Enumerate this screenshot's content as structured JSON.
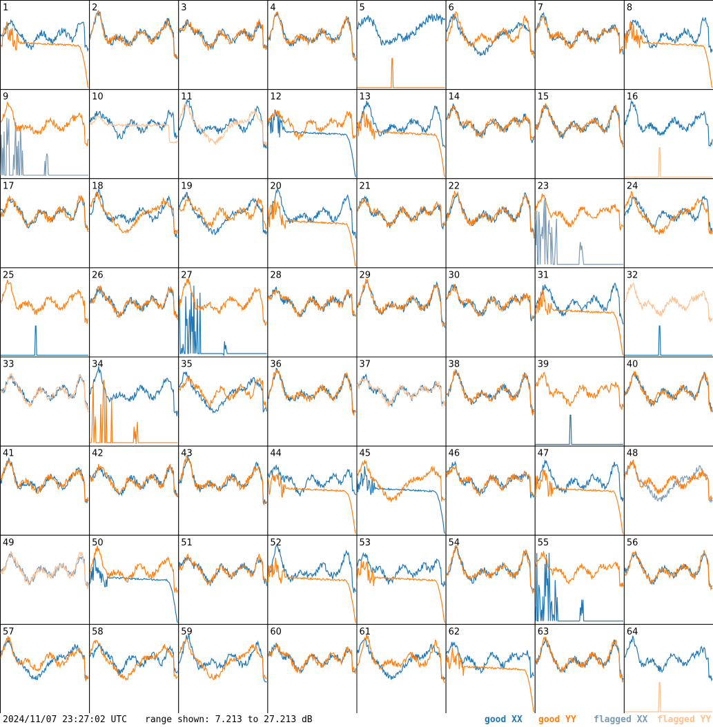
{
  "footer": {
    "timestamp": "2024/11/07 23:27:02 UTC",
    "range_text": "range shown: 7.213 to 27.213 dB"
  },
  "legend": [
    {
      "label": "good XX",
      "color": "#1f77b4"
    },
    {
      "label": "good YY",
      "color": "#ff7f0e"
    },
    {
      "label": "flagged XX",
      "color": "#7a9ab5"
    },
    {
      "label": "flagged YY",
      "color": "#ffc090"
    }
  ],
  "chart_data": {
    "type": "line",
    "layout": "8x8 small multiples",
    "ylim": [
      7.213,
      27.213
    ],
    "yunit": "dB",
    "panels": [
      {
        "id": "1",
        "xx": {
          "s": "good",
          "p": "A"
        },
        "yy": {
          "s": "good",
          "p": "K"
        }
      },
      {
        "id": "2",
        "xx": {
          "s": "good",
          "p": "A"
        },
        "yy": {
          "s": "good",
          "p": "A"
        }
      },
      {
        "id": "3",
        "xx": {
          "s": "good",
          "p": "A"
        },
        "yy": {
          "s": "good",
          "p": "A"
        }
      },
      {
        "id": "4",
        "xx": {
          "s": "good",
          "p": "A"
        },
        "yy": {
          "s": "good",
          "p": "A"
        }
      },
      {
        "id": "5",
        "xx": {
          "s": "good",
          "p": "W"
        },
        "yy": {
          "s": "good",
          "p": "Z"
        }
      },
      {
        "id": "6",
        "xx": {
          "s": "good",
          "p": "D"
        },
        "yy": {
          "s": "good",
          "p": "A"
        }
      },
      {
        "id": "7",
        "xx": {
          "s": "good",
          "p": "A"
        },
        "yy": {
          "s": "good",
          "p": "A"
        }
      },
      {
        "id": "8",
        "xx": {
          "s": "good",
          "p": "A"
        },
        "yy": {
          "s": "good",
          "p": "K"
        }
      },
      {
        "id": "9",
        "xx": {
          "s": "flagged",
          "p": "S"
        },
        "yy": {
          "s": "good",
          "p": "A"
        }
      },
      {
        "id": "10",
        "xx": {
          "s": "good",
          "p": "A"
        },
        "yy": {
          "s": "flagged",
          "p": "L"
        }
      },
      {
        "id": "11",
        "xx": {
          "s": "good",
          "p": "A"
        },
        "yy": {
          "s": "flagged",
          "p": "D"
        }
      },
      {
        "id": "12",
        "xx": {
          "s": "good",
          "p": "K"
        },
        "yy": {
          "s": "good",
          "p": "A"
        }
      },
      {
        "id": "13",
        "xx": {
          "s": "good",
          "p": "A"
        },
        "yy": {
          "s": "good",
          "p": "K"
        }
      },
      {
        "id": "14",
        "xx": {
          "s": "good",
          "p": "A"
        },
        "yy": {
          "s": "good",
          "p": "A"
        }
      },
      {
        "id": "15",
        "xx": {
          "s": "good",
          "p": "A"
        },
        "yy": {
          "s": "good",
          "p": "A"
        }
      },
      {
        "id": "16",
        "xx": {
          "s": "good",
          "p": "A"
        },
        "yy": {
          "s": "flagged",
          "p": "Z"
        }
      },
      {
        "id": "17",
        "xx": {
          "s": "good",
          "p": "A"
        },
        "yy": {
          "s": "good",
          "p": "A"
        }
      },
      {
        "id": "18",
        "xx": {
          "s": "good",
          "p": "A"
        },
        "yy": {
          "s": "good",
          "p": "D"
        }
      },
      {
        "id": "19",
        "xx": {
          "s": "good",
          "p": "D"
        },
        "yy": {
          "s": "good",
          "p": "A"
        }
      },
      {
        "id": "20",
        "xx": {
          "s": "good",
          "p": "A"
        },
        "yy": {
          "s": "good",
          "p": "K"
        }
      },
      {
        "id": "21",
        "xx": {
          "s": "good",
          "p": "A"
        },
        "yy": {
          "s": "good",
          "p": "A"
        }
      },
      {
        "id": "22",
        "xx": {
          "s": "good",
          "p": "A"
        },
        "yy": {
          "s": "good",
          "p": "A"
        }
      },
      {
        "id": "23",
        "xx": {
          "s": "flagged",
          "p": "S"
        },
        "yy": {
          "s": "good",
          "p": "A"
        }
      },
      {
        "id": "24",
        "xx": {
          "s": "good",
          "p": "A"
        },
        "yy": {
          "s": "good",
          "p": "D"
        }
      },
      {
        "id": "25",
        "xx": {
          "s": "good",
          "p": "Z"
        },
        "yy": {
          "s": "good",
          "p": "A"
        }
      },
      {
        "id": "26",
        "xx": {
          "s": "good",
          "p": "A"
        },
        "yy": {
          "s": "good",
          "p": "A"
        }
      },
      {
        "id": "27",
        "xx": {
          "s": "good",
          "p": "S"
        },
        "yy": {
          "s": "good",
          "p": "A"
        }
      },
      {
        "id": "28",
        "xx": {
          "s": "good",
          "p": "A"
        },
        "yy": {
          "s": "good",
          "p": "A"
        }
      },
      {
        "id": "29",
        "xx": {
          "s": "good",
          "p": "A"
        },
        "yy": {
          "s": "good",
          "p": "A"
        }
      },
      {
        "id": "30",
        "xx": {
          "s": "good",
          "p": "A"
        },
        "yy": {
          "s": "good",
          "p": "A"
        }
      },
      {
        "id": "31",
        "xx": {
          "s": "good",
          "p": "A"
        },
        "yy": {
          "s": "good",
          "p": "K"
        }
      },
      {
        "id": "32",
        "xx": {
          "s": "good",
          "p": "Z"
        },
        "yy": {
          "s": "flagged",
          "p": "A"
        }
      },
      {
        "id": "33",
        "xx": {
          "s": "good",
          "p": "A"
        },
        "yy": {
          "s": "flagged",
          "p": "A"
        }
      },
      {
        "id": "34",
        "xx": {
          "s": "good",
          "p": "A"
        },
        "yy": {
          "s": "good",
          "p": "S"
        }
      },
      {
        "id": "35",
        "xx": {
          "s": "good",
          "p": "D"
        },
        "yy": {
          "s": "good",
          "p": "A"
        }
      },
      {
        "id": "36",
        "xx": {
          "s": "good",
          "p": "A"
        },
        "yy": {
          "s": "good",
          "p": "A"
        }
      },
      {
        "id": "37",
        "xx": {
          "s": "good",
          "p": "A"
        },
        "yy": {
          "s": "flagged",
          "p": "A"
        }
      },
      {
        "id": "38",
        "xx": {
          "s": "good",
          "p": "A"
        },
        "yy": {
          "s": "good",
          "p": "A"
        }
      },
      {
        "id": "39",
        "xx": {
          "s": "good",
          "p": "Z"
        },
        "yy": {
          "s": "good",
          "p": "A"
        }
      },
      {
        "id": "40",
        "xx": {
          "s": "good",
          "p": "A"
        },
        "yy": {
          "s": "good",
          "p": "A"
        }
      },
      {
        "id": "41",
        "xx": {
          "s": "good",
          "p": "A"
        },
        "yy": {
          "s": "good",
          "p": "A"
        }
      },
      {
        "id": "42",
        "xx": {
          "s": "good",
          "p": "A"
        },
        "yy": {
          "s": "good",
          "p": "A"
        }
      },
      {
        "id": "43",
        "xx": {
          "s": "good",
          "p": "A"
        },
        "yy": {
          "s": "good",
          "p": "A"
        }
      },
      {
        "id": "44",
        "xx": {
          "s": "good",
          "p": "A"
        },
        "yy": {
          "s": "good",
          "p": "K"
        }
      },
      {
        "id": "45",
        "xx": {
          "s": "good",
          "p": "K"
        },
        "yy": {
          "s": "good",
          "p": "D"
        }
      },
      {
        "id": "46",
        "xx": {
          "s": "good",
          "p": "A"
        },
        "yy": {
          "s": "good",
          "p": "A"
        }
      },
      {
        "id": "47",
        "xx": {
          "s": "good",
          "p": "A"
        },
        "yy": {
          "s": "good",
          "p": "K"
        }
      },
      {
        "id": "48",
        "xx": {
          "s": "flagged",
          "p": "D"
        },
        "yy": {
          "s": "good",
          "p": "A"
        }
      },
      {
        "id": "49",
        "xx": {
          "s": "flagged",
          "p": "A"
        },
        "yy": {
          "s": "flagged",
          "p": "A"
        }
      },
      {
        "id": "50",
        "xx": {
          "s": "good",
          "p": "K"
        },
        "yy": {
          "s": "good",
          "p": "A"
        }
      },
      {
        "id": "51",
        "xx": {
          "s": "good",
          "p": "A"
        },
        "yy": {
          "s": "good",
          "p": "A"
        }
      },
      {
        "id": "52",
        "xx": {
          "s": "good",
          "p": "A"
        },
        "yy": {
          "s": "good",
          "p": "K"
        }
      },
      {
        "id": "53",
        "xx": {
          "s": "good",
          "p": "A"
        },
        "yy": {
          "s": "good",
          "p": "K"
        }
      },
      {
        "id": "54",
        "xx": {
          "s": "good",
          "p": "A"
        },
        "yy": {
          "s": "good",
          "p": "A"
        }
      },
      {
        "id": "55",
        "xx": {
          "s": "good",
          "p": "S"
        },
        "yy": {
          "s": "good",
          "p": "A"
        }
      },
      {
        "id": "56",
        "xx": {
          "s": "good",
          "p": "A"
        },
        "yy": {
          "s": "good",
          "p": "A"
        }
      },
      {
        "id": "57",
        "xx": {
          "s": "good",
          "p": "D"
        },
        "yy": {
          "s": "good",
          "p": "A"
        }
      },
      {
        "id": "58",
        "xx": {
          "s": "good",
          "p": "A"
        },
        "yy": {
          "s": "good",
          "p": "D"
        }
      },
      {
        "id": "59",
        "xx": {
          "s": "good",
          "p": "A"
        },
        "yy": {
          "s": "good",
          "p": "D"
        }
      },
      {
        "id": "60",
        "xx": {
          "s": "good",
          "p": "A"
        },
        "yy": {
          "s": "good",
          "p": "A"
        }
      },
      {
        "id": "61",
        "xx": {
          "s": "good",
          "p": "D"
        },
        "yy": {
          "s": "good",
          "p": "A"
        }
      },
      {
        "id": "62",
        "xx": {
          "s": "good",
          "p": "A"
        },
        "yy": {
          "s": "good",
          "p": "K"
        }
      },
      {
        "id": "63",
        "xx": {
          "s": "good",
          "p": "A"
        },
        "yy": {
          "s": "good",
          "p": "A"
        }
      },
      {
        "id": "64",
        "xx": {
          "s": "good",
          "p": "A"
        },
        "yy": {
          "s": "flagged",
          "p": "Z"
        }
      }
    ]
  }
}
